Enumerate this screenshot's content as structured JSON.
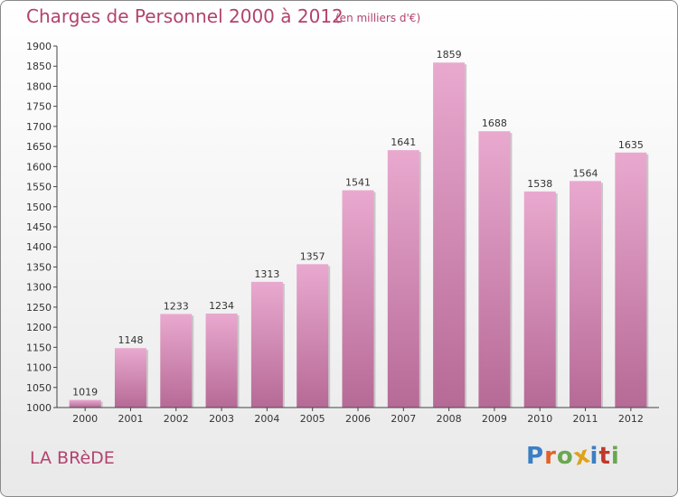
{
  "header": {
    "title": "Charges de Personnel 2000 à 2012",
    "subtitle": "(en milliers d'€)"
  },
  "footer": {
    "city": "LA BRèDE",
    "logo_text": "Proxiti",
    "logo_letters": [
      {
        "ch": "P",
        "color": "#3b7fc4"
      },
      {
        "ch": "r",
        "color": "#e0622a"
      },
      {
        "ch": "o",
        "color": "#6aa84f"
      },
      {
        "ch": "x",
        "color": "#e0a21a"
      },
      {
        "ch": "i",
        "color": "#3b7fc4"
      },
      {
        "ch": "t",
        "color": "#c0392b"
      },
      {
        "ch": "i",
        "color": "#6aa84f"
      }
    ]
  },
  "colors": {
    "bar_top": "#e9a9cf",
    "bar_bottom": "#b66a96",
    "accent": "#b2436e"
  },
  "chart_data": {
    "type": "bar",
    "categories": [
      "2000",
      "2001",
      "2002",
      "2003",
      "2004",
      "2005",
      "2006",
      "2007",
      "2008",
      "2009",
      "2010",
      "2011",
      "2012"
    ],
    "values": [
      1019,
      1148,
      1233,
      1234,
      1313,
      1357,
      1541,
      1641,
      1859,
      1688,
      1538,
      1564,
      1635
    ],
    "ylim": [
      1000,
      1900
    ],
    "yticks": [
      1000,
      1050,
      1100,
      1150,
      1200,
      1250,
      1300,
      1350,
      1400,
      1450,
      1500,
      1550,
      1600,
      1650,
      1700,
      1750,
      1800,
      1850,
      1900
    ],
    "grid": false,
    "data_labels": true
  }
}
